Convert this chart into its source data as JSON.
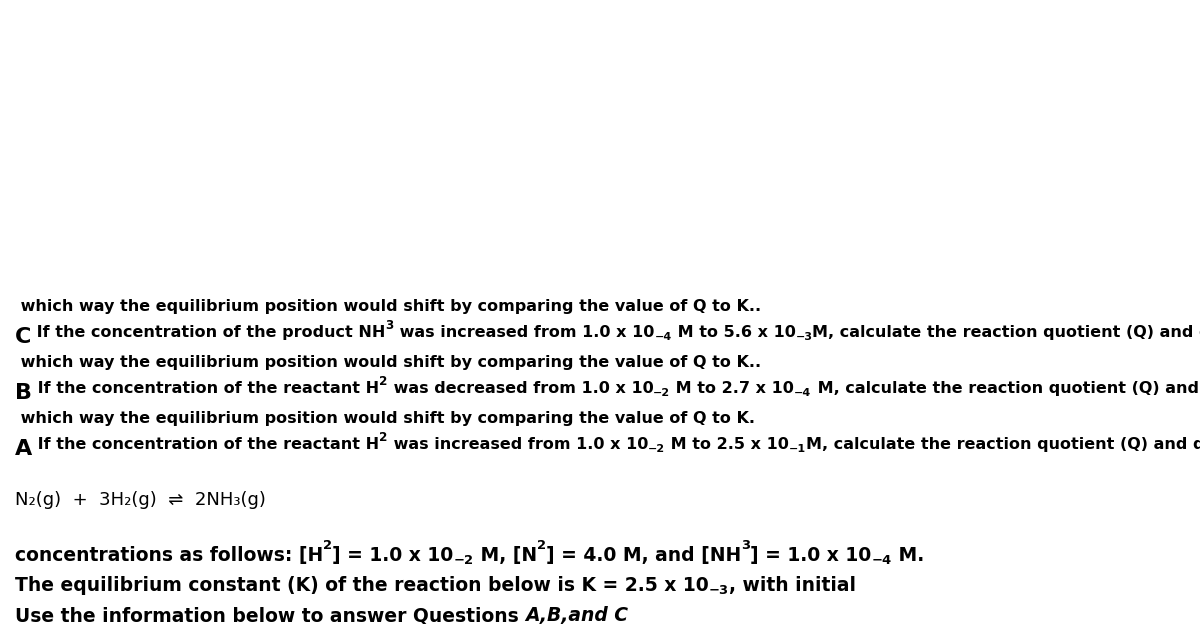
{
  "background_color": "#ffffff",
  "figsize": [
    12.0,
    6.24
  ],
  "dpi": 100
}
